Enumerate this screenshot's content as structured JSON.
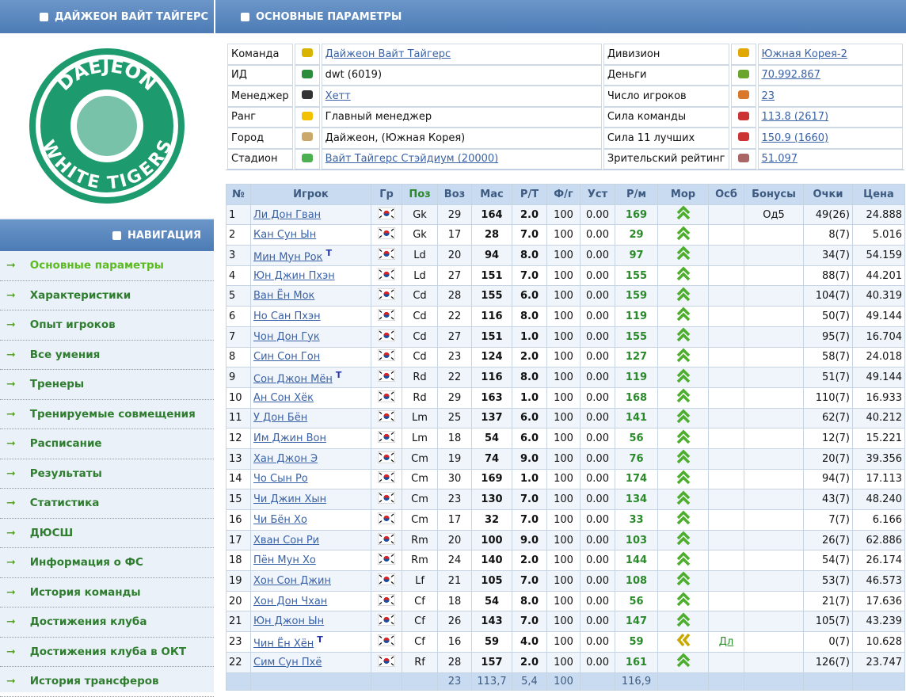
{
  "sidebar": {
    "team_title": "ДАЙЖЕОН ВАЙТ ТАЙГЕРС",
    "logo": {
      "top": "DAEJEON",
      "bottom": "WHITE TIGERS"
    },
    "nav_title": "НАВИГАЦИЯ",
    "nav": [
      "Основные параметры",
      "Характеристики",
      "Опыт игроков",
      "Все умения",
      "Тренеры",
      "Тренируемые совмещения",
      "Расписание",
      "Результаты",
      "Статистика",
      "ДЮСШ",
      "Информация о ФС",
      "История команды",
      "Достижения клуба",
      "Достижения клуба в ОКТ",
      "История трансферов"
    ]
  },
  "main": {
    "title": "ОСНОВНЫЕ ПАРАМЕТРЫ",
    "info_left": [
      [
        "Команда",
        "Дайжеон Вайт Тайгерс"
      ],
      [
        "ИД",
        "dwt (6019)"
      ],
      [
        "Менеджер",
        "Хетт"
      ],
      [
        "Ранг",
        "Главный менеджер"
      ],
      [
        "Город",
        "Дайжеон, (Южная Корея)"
      ],
      [
        "Стадион",
        "Вайт Тайгерс Стэйдиум (20000)"
      ]
    ],
    "info_right": [
      [
        "Дивизион",
        "Южная Корея-2"
      ],
      [
        "Деньги",
        "70.992.867"
      ],
      [
        "Число игроков",
        "23"
      ],
      [
        "Сила команды",
        "113.8 (2617)"
      ],
      [
        "Сила 11 лучших",
        "150.9 (1660)"
      ],
      [
        "Зрительский рейтинг",
        "51.097"
      ]
    ],
    "players": {
      "headers": [
        "№",
        "Игрок",
        "Гр",
        "Поз",
        "Воз",
        "Мас",
        "Р/Т",
        "Ф/г",
        "Уст",
        "Р/м",
        "Мор",
        "Осб",
        "Бонусы",
        "Очки",
        "Цена"
      ],
      "rows": [
        {
          "n": "1",
          "name": "Ли Дон Гван",
          "pos": "Gk",
          "age": "29",
          "mas": "164",
          "rt": "2.0",
          "fg": "100",
          "ust": "0.00",
          "rm": "169",
          "bonus": "Од5",
          "pts": "49(26)",
          "price": "24.888"
        },
        {
          "n": "2",
          "name": "Кан Сун Ын",
          "pos": "Gk",
          "age": "17",
          "mas": "28",
          "rt": "7.0",
          "fg": "100",
          "ust": "0.00",
          "rm": "29",
          "pts": "8(7)",
          "price": "5.016"
        },
        {
          "n": "3",
          "name": "Мин Мун Рок",
          "tag": "T",
          "pos": "Ld",
          "age": "20",
          "mas": "94",
          "rt": "8.0",
          "fg": "100",
          "ust": "0.00",
          "rm": "97",
          "pts": "34(7)",
          "price": "54.159"
        },
        {
          "n": "4",
          "name": "Юн Джин Пхэн",
          "pos": "Ld",
          "age": "27",
          "mas": "151",
          "rt": "7.0",
          "fg": "100",
          "ust": "0.00",
          "rm": "155",
          "pts": "88(7)",
          "price": "44.201"
        },
        {
          "n": "5",
          "name": "Ван Ён Мок",
          "pos": "Cd",
          "age": "28",
          "mas": "155",
          "rt": "6.0",
          "fg": "100",
          "ust": "0.00",
          "rm": "159",
          "pts": "104(7)",
          "price": "40.319"
        },
        {
          "n": "6",
          "name": "Но Сан Пхэн",
          "pos": "Cd",
          "age": "22",
          "mas": "116",
          "rt": "8.0",
          "fg": "100",
          "ust": "0.00",
          "rm": "119",
          "pts": "50(7)",
          "price": "49.144"
        },
        {
          "n": "7",
          "name": "Чон Дон Гук",
          "pos": "Cd",
          "age": "27",
          "mas": "151",
          "rt": "1.0",
          "fg": "100",
          "ust": "0.00",
          "rm": "155",
          "pts": "95(7)",
          "price": "16.704"
        },
        {
          "n": "8",
          "name": "Син Сон Гон",
          "pos": "Cd",
          "age": "23",
          "mas": "124",
          "rt": "2.0",
          "fg": "100",
          "ust": "0.00",
          "rm": "127",
          "pts": "58(7)",
          "price": "24.018"
        },
        {
          "n": "9",
          "name": "Сон Джон Мён",
          "tag": "T",
          "pos": "Rd",
          "age": "22",
          "mas": "116",
          "rt": "8.0",
          "fg": "100",
          "ust": "0.00",
          "rm": "119",
          "pts": "51(7)",
          "price": "49.144"
        },
        {
          "n": "10",
          "name": "Ан Сон Хёк",
          "pos": "Rd",
          "age": "29",
          "mas": "163",
          "rt": "1.0",
          "fg": "100",
          "ust": "0.00",
          "rm": "168",
          "pts": "110(7)",
          "price": "16.933"
        },
        {
          "n": "11",
          "name": "У Дон Бён",
          "pos": "Lm",
          "age": "25",
          "mas": "137",
          "rt": "6.0",
          "fg": "100",
          "ust": "0.00",
          "rm": "141",
          "pts": "62(7)",
          "price": "40.212"
        },
        {
          "n": "12",
          "name": "Им Джин Вон",
          "pos": "Lm",
          "age": "18",
          "mas": "54",
          "rt": "6.0",
          "fg": "100",
          "ust": "0.00",
          "rm": "56",
          "pts": "12(7)",
          "price": "15.221"
        },
        {
          "n": "13",
          "name": "Хан Джон Э",
          "pos": "Cm",
          "age": "19",
          "mas": "74",
          "rt": "9.0",
          "fg": "100",
          "ust": "0.00",
          "rm": "76",
          "pts": "20(7)",
          "price": "39.356"
        },
        {
          "n": "14",
          "name": "Чо Сын Ро",
          "pos": "Cm",
          "age": "30",
          "mas": "169",
          "rt": "1.0",
          "fg": "100",
          "ust": "0.00",
          "rm": "174",
          "pts": "94(7)",
          "price": "17.113"
        },
        {
          "n": "15",
          "name": "Чи Джин Хын",
          "pos": "Cm",
          "age": "23",
          "mas": "130",
          "rt": "7.0",
          "fg": "100",
          "ust": "0.00",
          "rm": "134",
          "pts": "43(7)",
          "price": "48.240"
        },
        {
          "n": "16",
          "name": "Чи Бён Хо",
          "pos": "Cm",
          "age": "17",
          "mas": "32",
          "rt": "7.0",
          "fg": "100",
          "ust": "0.00",
          "rm": "33",
          "pts": "7(7)",
          "price": "6.166"
        },
        {
          "n": "17",
          "name": "Хван Сон Ри",
          "pos": "Rm",
          "age": "20",
          "mas": "100",
          "rt": "9.0",
          "fg": "100",
          "ust": "0.00",
          "rm": "103",
          "pts": "26(7)",
          "price": "62.886"
        },
        {
          "n": "18",
          "name": "Пён Мун Хо",
          "pos": "Rm",
          "age": "24",
          "mas": "140",
          "rt": "2.0",
          "fg": "100",
          "ust": "0.00",
          "rm": "144",
          "pts": "54(7)",
          "price": "26.174"
        },
        {
          "n": "19",
          "name": "Хон Сон Джин",
          "pos": "Lf",
          "age": "21",
          "mas": "105",
          "rt": "7.0",
          "fg": "100",
          "ust": "0.00",
          "rm": "108",
          "pts": "53(7)",
          "price": "46.573"
        },
        {
          "n": "20",
          "name": "Хон Дон Чхан",
          "pos": "Cf",
          "age": "18",
          "mas": "54",
          "rt": "8.0",
          "fg": "100",
          "ust": "0.00",
          "rm": "56",
          "pts": "21(7)",
          "price": "17.636"
        },
        {
          "n": "21",
          "name": "Юн Джон Ын",
          "pos": "Cf",
          "age": "26",
          "mas": "143",
          "rt": "7.0",
          "fg": "100",
          "ust": "0.00",
          "rm": "147",
          "pts": "105(7)",
          "price": "43.239"
        },
        {
          "n": "23",
          "name": "Чин Ён Хён",
          "tag": "T",
          "pos": "Cf",
          "age": "16",
          "mas": "59",
          "rt": "4.0",
          "fg": "100",
          "ust": "0.00",
          "rm": "59",
          "mor": "down",
          "osb": "Дл",
          "pts": "0(7)",
          "price": "10.628"
        },
        {
          "n": "22",
          "name": "Сим Сун Пхё",
          "pos": "Rf",
          "age": "28",
          "mas": "157",
          "rt": "2.0",
          "fg": "100",
          "ust": "0.00",
          "rm": "161",
          "pts": "126(7)",
          "price": "23.747"
        }
      ],
      "footer": {
        "age": "23",
        "mas": "113,7",
        "rt": "5,4",
        "fg": "100",
        "rm": "116,9"
      }
    }
  }
}
